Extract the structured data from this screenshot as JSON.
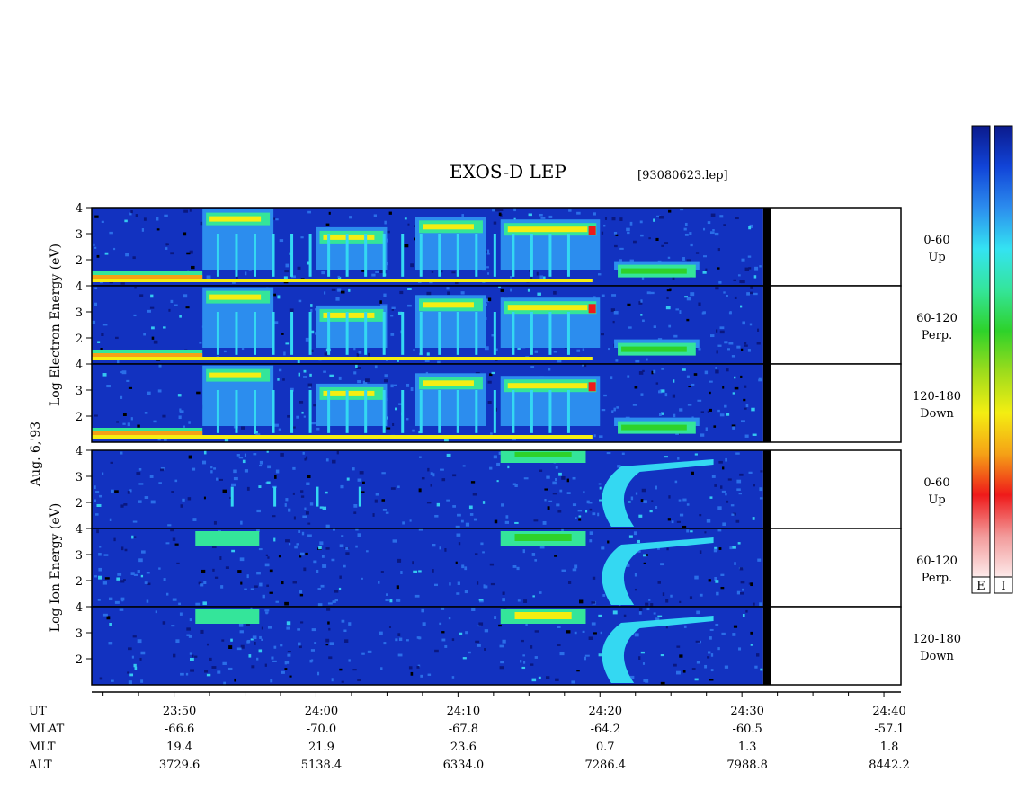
{
  "title": "EXOS-D LEP",
  "file_tag": "[93080623.lep]",
  "date_label": "Aug. 6,'93",
  "chart_data": {
    "type": "heatmap",
    "groups": [
      {
        "name": "electron",
        "ylabel": "Log Electron Energy (eV)",
        "ylim": [
          1,
          4
        ],
        "yticks": [
          "4",
          "3",
          "2"
        ],
        "panels": [
          {
            "pitch": "0-60",
            "dir": "Up"
          },
          {
            "pitch": "60-120",
            "dir": "Perp."
          },
          {
            "pitch": "120-180",
            "dir": "Down"
          }
        ]
      },
      {
        "name": "ion",
        "ylabel": "Log Ion Energy (eV)",
        "ylim": [
          1,
          4
        ],
        "yticks": [
          "4",
          "3",
          "2"
        ],
        "panels": [
          {
            "pitch": "0-60",
            "dir": "Up"
          },
          {
            "pitch": "60-120",
            "dir": "Perp."
          },
          {
            "pitch": "120-180",
            "dir": "Down"
          }
        ]
      }
    ],
    "x_rows": [
      {
        "label": "UT",
        "values": [
          "23:50",
          "24:00",
          "24:10",
          "24:20",
          "24:30",
          "24:40"
        ]
      },
      {
        "label": "MLAT",
        "values": [
          "-66.6",
          "-70.0",
          "-67.8",
          "-64.2",
          "-60.5",
          "-57.1"
        ]
      },
      {
        "label": "MLT",
        "values": [
          "19.4",
          "21.9",
          "23.6",
          "0.7",
          "1.3",
          "1.8"
        ]
      },
      {
        "label": "ALT",
        "values": [
          "3729.6",
          "5138.4",
          "6334.0",
          "7286.4",
          "7988.8",
          "8442.2"
        ]
      }
    ],
    "x_ticks_min": [
      1430,
      1440,
      1450,
      1460,
      1470,
      1480
    ],
    "xlim_min": [
      1424.2,
      1481.2
    ],
    "data_end_min": 1471.5,
    "colorbar": {
      "labels": [
        "E",
        "I"
      ],
      "colors": [
        "#0b1a8c",
        "#1144d8",
        "#2c8dee",
        "#34e3f2",
        "#34e59a",
        "#2ed22a",
        "#9edc1c",
        "#f4ee12",
        "#f5a116",
        "#ef1a1a",
        "#f29a9a",
        "#fdeaea"
      ]
    }
  }
}
